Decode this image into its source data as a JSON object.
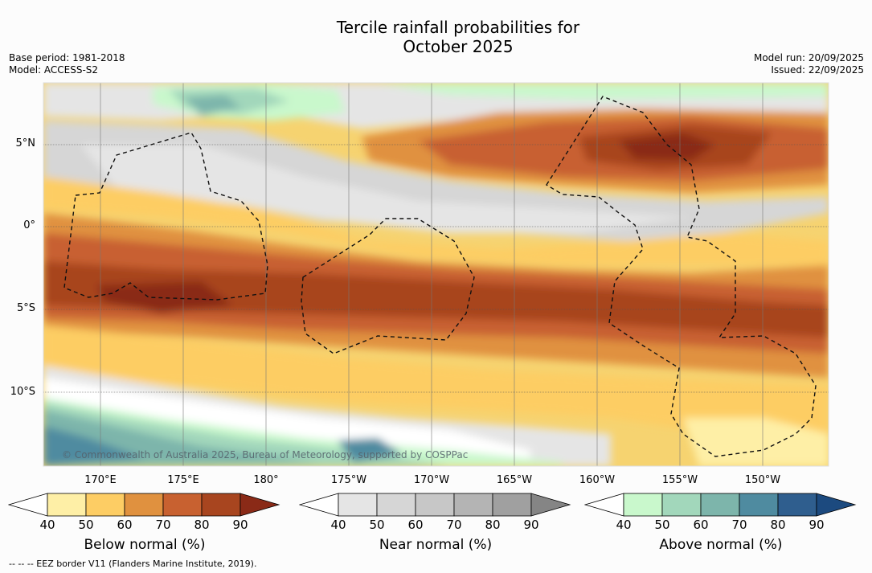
{
  "title": {
    "line1": "Tercile rainfall probabilities for",
    "line2": "October 2025"
  },
  "meta_left": {
    "base_period": "Base period: 1981-2018",
    "model": "Model: ACCESS-S2"
  },
  "meta_right": {
    "model_run": "Model run: 20/09/2025",
    "issued": "Issued: 22/09/2025"
  },
  "lat_labels": [
    "5°N",
    "0°",
    "5°S",
    "10°S"
  ],
  "lon_labels": [
    "170°E",
    "175°E",
    "180°",
    "175°W",
    "170°W",
    "165°W",
    "160°W",
    "155°W",
    "150°W"
  ],
  "copyright": "© Commonwealth of Australia 2025, Bureau of Meteorology, supported by COSPPac",
  "colorbars": [
    {
      "title": "Below normal (%)",
      "ticks": [
        "40",
        "50",
        "60",
        "70",
        "80",
        "90"
      ],
      "colors": [
        "#ffffff",
        "#feefa6",
        "#fdcd64",
        "#e0913f",
        "#c86130",
        "#a8451f",
        "#8a2a17"
      ]
    },
    {
      "title": "Near normal (%)",
      "ticks": [
        "40",
        "50",
        "60",
        "70",
        "80",
        "90"
      ],
      "colors": [
        "#ffffff",
        "#e5e5e5",
        "#d6d6d6",
        "#c7c7c7",
        "#b4b4b4",
        "#a0a0a0",
        "#858585"
      ]
    },
    {
      "title": "Above normal (%)",
      "ticks": [
        "40",
        "50",
        "60",
        "70",
        "80",
        "90"
      ],
      "colors": [
        "#ffffff",
        "#c9f8cc",
        "#a2d7bb",
        "#7db5ab",
        "#4f8ba0",
        "#2f5e8e",
        "#1c4a7f"
      ]
    }
  ],
  "legend_note": "--  --  -- EEZ border V11 (Flanders Marine Institute, 2019).",
  "map_colors": {
    "ocean_base": "#f6d370",
    "white": "#ffffff",
    "yellow_light": "#feefa6",
    "yellow": "#fdcd64",
    "orange_light": "#e0913f",
    "orange": "#c86130",
    "brown": "#a8451f",
    "brown_dark": "#8a2a17",
    "grey_light": "#e5e5e5",
    "grey": "#d6d6d6",
    "green_light": "#c9f8cc",
    "green": "#a2d7bb",
    "teal": "#7db5ab",
    "teal_dark": "#4f8ba0",
    "blue": "#2f5e8e"
  }
}
